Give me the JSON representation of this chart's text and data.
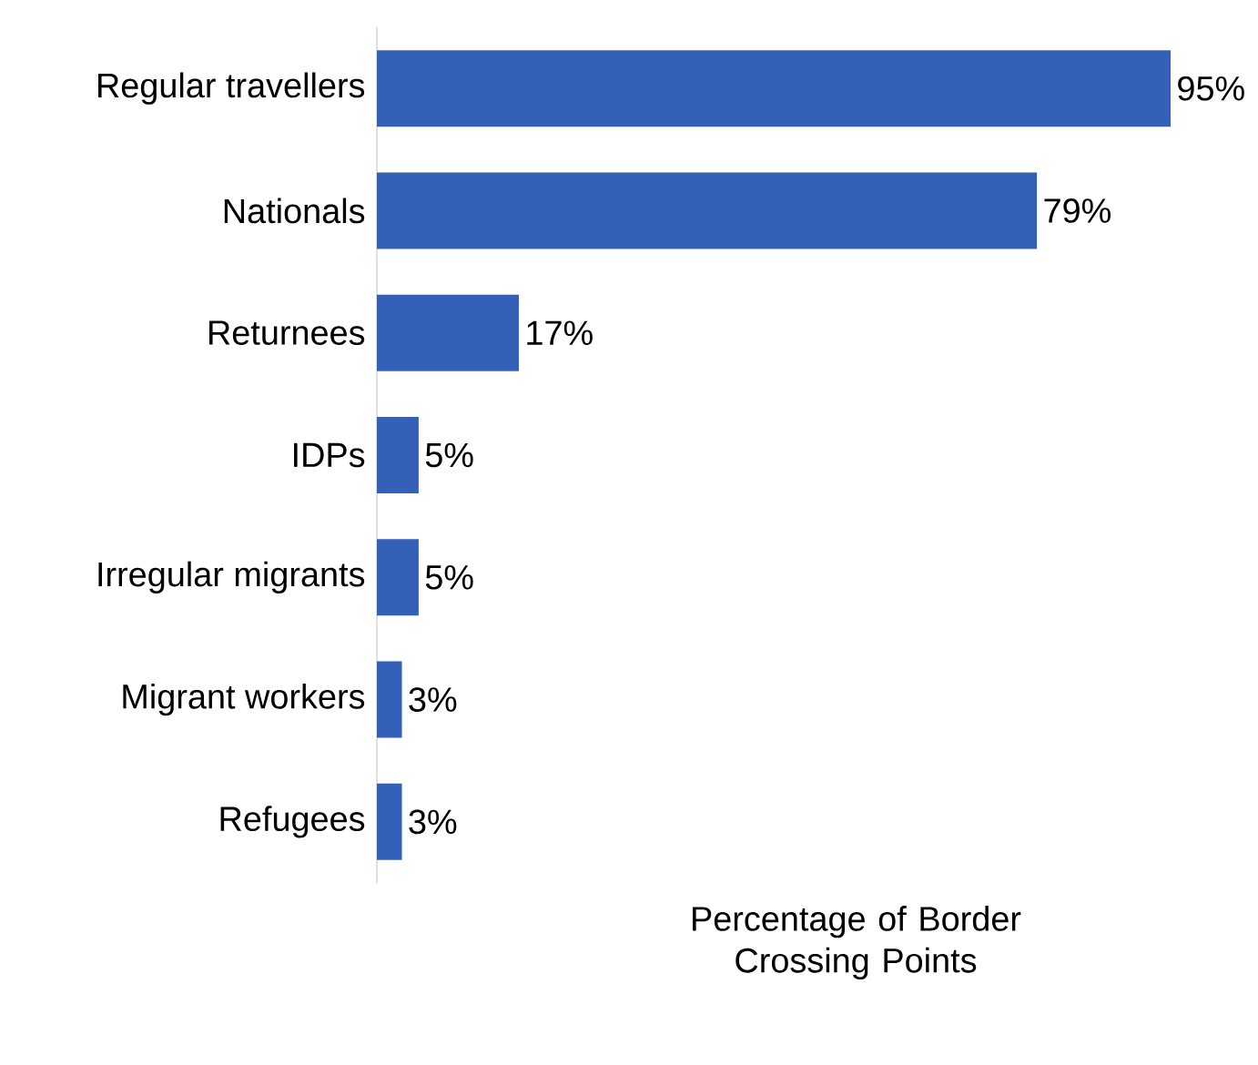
{
  "chart_data": {
    "type": "bar",
    "orientation": "horizontal",
    "xlabel": "Percentage of Border Crossing Points",
    "categories": [
      "Regular travellers",
      "Nationals",
      "Returnees",
      "IDPs",
      "Irregular migrants",
      "Migrant workers",
      "Refugees"
    ],
    "values": [
      95,
      79,
      17,
      5,
      5,
      3,
      3
    ],
    "value_labels": [
      "95%",
      "79%",
      "17%",
      "5%",
      "5%",
      "3%",
      "3%"
    ],
    "color": "#3560b8"
  }
}
